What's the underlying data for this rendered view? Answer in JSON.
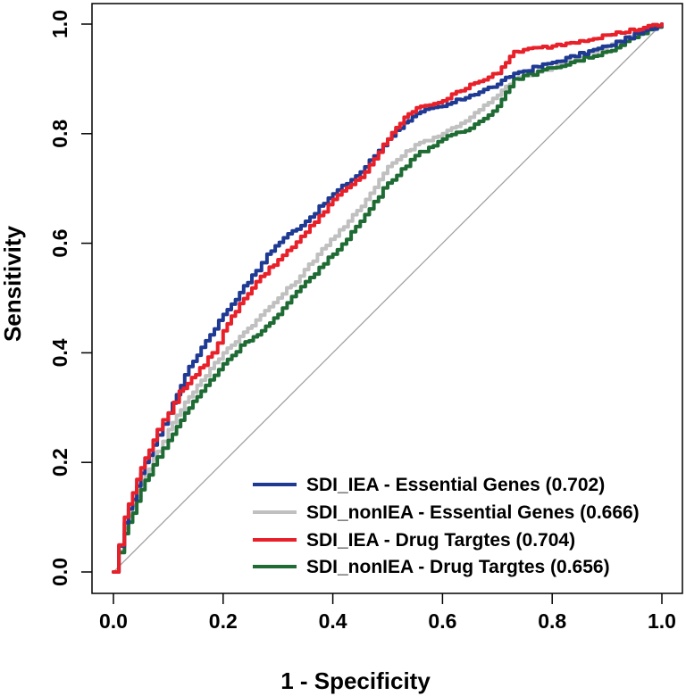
{
  "chart_data": {
    "type": "line",
    "title": "",
    "xlabel": "1 - Specificity",
    "ylabel": "Sensitivity",
    "xlim": [
      0.0,
      1.0
    ],
    "ylim": [
      0.0,
      1.0
    ],
    "xticks": [
      "0.0",
      "0.2",
      "0.4",
      "0.6",
      "0.8",
      "1.0"
    ],
    "yticks": [
      "0.0",
      "0.2",
      "0.4",
      "0.6",
      "0.8",
      "1.0"
    ],
    "grid": false,
    "legend_position": "bottom-right",
    "reference_line": {
      "x": [
        0,
        1
      ],
      "y": [
        0,
        1
      ],
      "color": "#a0a0a0"
    },
    "series": [
      {
        "name": "SDI_IEA - Essential Genes (0.702)",
        "color": "#1f3a93",
        "x": [
          0,
          0.02,
          0.05,
          0.08,
          0.1,
          0.13,
          0.16,
          0.2,
          0.23,
          0.26,
          0.28,
          0.31,
          0.35,
          0.4,
          0.45,
          0.5,
          0.53,
          0.56,
          0.6,
          0.65,
          0.7,
          0.73,
          0.8,
          0.9,
          1.0
        ],
        "y": [
          0,
          0.09,
          0.18,
          0.25,
          0.29,
          0.36,
          0.41,
          0.47,
          0.51,
          0.55,
          0.58,
          0.61,
          0.64,
          0.69,
          0.73,
          0.79,
          0.82,
          0.84,
          0.85,
          0.87,
          0.89,
          0.91,
          0.93,
          0.96,
          1.0
        ]
      },
      {
        "name": "SDI_nonIEA - Essential Genes (0.666)",
        "color": "#c0c0c0",
        "x": [
          0,
          0.02,
          0.05,
          0.08,
          0.1,
          0.13,
          0.16,
          0.2,
          0.23,
          0.26,
          0.3,
          0.34,
          0.38,
          0.42,
          0.46,
          0.5,
          0.55,
          0.6,
          0.65,
          0.7,
          0.73,
          0.8,
          0.9,
          1.0
        ],
        "y": [
          0,
          0.08,
          0.16,
          0.22,
          0.26,
          0.31,
          0.35,
          0.4,
          0.43,
          0.46,
          0.5,
          0.54,
          0.59,
          0.63,
          0.68,
          0.74,
          0.78,
          0.8,
          0.83,
          0.87,
          0.9,
          0.92,
          0.96,
          1.0
        ]
      },
      {
        "name": "SDI_IEA - Drug Targtes (0.704)",
        "color": "#e8202a",
        "x": [
          0,
          0.02,
          0.05,
          0.08,
          0.1,
          0.12,
          0.15,
          0.18,
          0.2,
          0.23,
          0.26,
          0.3,
          0.35,
          0.4,
          0.45,
          0.5,
          0.53,
          0.56,
          0.6,
          0.65,
          0.7,
          0.73,
          0.8,
          0.9,
          1.0
        ],
        "y": [
          0,
          0.1,
          0.19,
          0.26,
          0.29,
          0.33,
          0.36,
          0.4,
          0.44,
          0.49,
          0.53,
          0.57,
          0.62,
          0.68,
          0.72,
          0.79,
          0.83,
          0.85,
          0.86,
          0.89,
          0.91,
          0.95,
          0.96,
          0.98,
          1.0
        ]
      },
      {
        "name": "SDI_nonIEA - Drug Targtes (0.656)",
        "color": "#1e6b34",
        "x": [
          0,
          0.02,
          0.05,
          0.08,
          0.1,
          0.13,
          0.16,
          0.2,
          0.24,
          0.27,
          0.3,
          0.35,
          0.4,
          0.45,
          0.5,
          0.55,
          0.6,
          0.65,
          0.7,
          0.73,
          0.8,
          0.9,
          1.0
        ],
        "y": [
          0,
          0.07,
          0.15,
          0.21,
          0.24,
          0.29,
          0.33,
          0.38,
          0.42,
          0.44,
          0.47,
          0.53,
          0.58,
          0.64,
          0.71,
          0.76,
          0.79,
          0.81,
          0.85,
          0.9,
          0.92,
          0.95,
          1.0
        ]
      }
    ]
  }
}
